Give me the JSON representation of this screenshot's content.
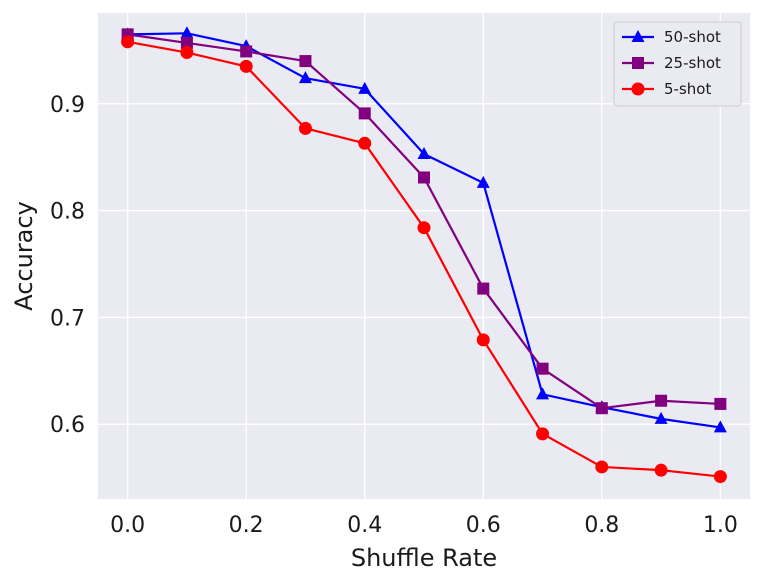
{
  "chart_data": {
    "type": "line",
    "title": "",
    "xlabel": "Shuffle Rate",
    "ylabel": "Accuracy",
    "xlim": [
      -0.05,
      1.05
    ],
    "ylim": [
      0.53,
      0.985
    ],
    "xticks": [
      "0.0",
      "0.2",
      "0.4",
      "0.6",
      "0.8",
      "1.0"
    ],
    "yticks": [
      "0.6",
      "0.7",
      "0.8",
      "0.9"
    ],
    "grid": true,
    "legend_position": "top-right",
    "x": [
      0.0,
      0.1,
      0.2,
      0.3,
      0.4,
      0.5,
      0.6,
      0.7,
      0.8,
      0.9,
      1.0
    ],
    "series": [
      {
        "name": "50-shot",
        "color": "#0000ff",
        "marker": "triangle",
        "values": [
          0.965,
          0.966,
          0.954,
          0.924,
          0.914,
          0.853,
          0.826,
          0.628,
          0.616,
          0.605,
          0.597
        ]
      },
      {
        "name": "25-shot",
        "color": "#800080",
        "marker": "square",
        "values": [
          0.965,
          0.957,
          0.949,
          0.94,
          0.891,
          0.831,
          0.727,
          0.652,
          0.615,
          0.622,
          0.619
        ]
      },
      {
        "name": "5-shot",
        "color": "#ff0000",
        "marker": "circle",
        "values": [
          0.958,
          0.948,
          0.935,
          0.877,
          0.863,
          0.784,
          0.679,
          0.591,
          0.56,
          0.557,
          0.551
        ]
      }
    ]
  }
}
